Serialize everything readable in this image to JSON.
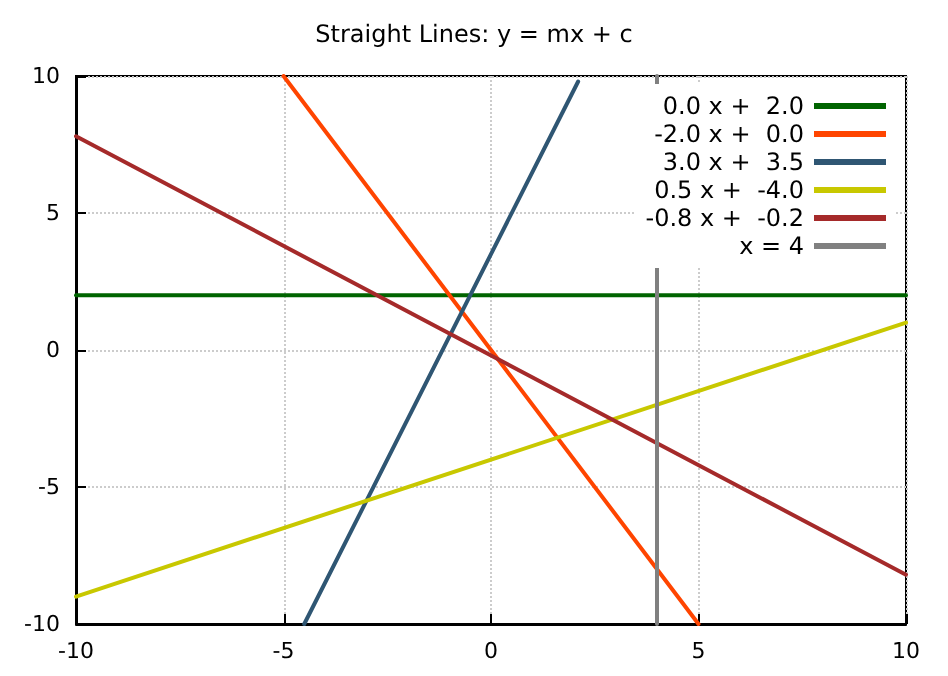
{
  "chart_data": {
    "type": "line",
    "title": "Straight Lines: y = mx + c",
    "xlim": [
      -10,
      10
    ],
    "ylim": [
      -10,
      10
    ],
    "xticks": [
      -10,
      -5,
      0,
      5,
      10
    ],
    "yticks": [
      -10,
      -5,
      0,
      5,
      10
    ],
    "grid": true,
    "legend": "top right",
    "line_style": "solid",
    "marker": "none",
    "series": [
      {
        "name": "0.0 x +  2.0",
        "color": "#006400",
        "x": [
          -10,
          10
        ],
        "values": [
          2,
          2
        ]
      },
      {
        "name": "-2.0 x +  0.0",
        "color": "#ff4500",
        "x": [
          -5,
          5
        ],
        "values": [
          10,
          -10
        ]
      },
      {
        "name": "3.0 x +  3.5",
        "color": "#2f5673",
        "x": [
          -4.5,
          2.1
        ],
        "values": [
          -10,
          9.8
        ]
      },
      {
        "name": "0.5 x +  -4.0",
        "color": "#c8c800",
        "x": [
          -10,
          10
        ],
        "values": [
          -9,
          1
        ]
      },
      {
        "name": "-0.8 x +  -0.2",
        "color": "#a52a2a",
        "x": [
          -10,
          10
        ],
        "values": [
          7.8,
          -8.2
        ]
      },
      {
        "name": "x = 4",
        "color": "#808080",
        "x": [
          4,
          4
        ],
        "values": [
          -10,
          10
        ]
      }
    ]
  }
}
